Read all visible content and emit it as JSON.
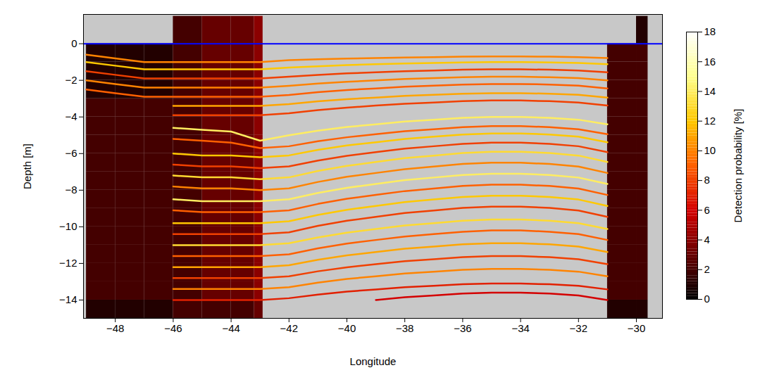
{
  "chart_data": {
    "type": "heatmap",
    "x_label": "Longitude",
    "y_label": "Depth [m]",
    "xlim": [
      -49.1,
      -29.1
    ],
    "ylim": [
      -15,
      1.6
    ],
    "xticks": [
      -48,
      -46,
      -44,
      -42,
      -40,
      -38,
      -36,
      -34,
      -32,
      -30
    ],
    "yticks": [
      -14,
      -12,
      -10,
      -8,
      -6,
      -4,
      -2,
      0
    ],
    "cells": {
      "x_edges": [
        -49,
        -48,
        -47,
        -46,
        -45,
        -44,
        -43.2,
        -42.9,
        -42,
        -41,
        -40,
        -39,
        -38,
        -37,
        -36,
        -35,
        -34,
        -33,
        -32,
        -31,
        -30,
        -29.6
      ],
      "y_edges": [
        -15,
        -14,
        -13,
        -12,
        -11,
        -10,
        -9,
        -8,
        -7,
        -6,
        -5,
        -4,
        -3,
        -2,
        -1,
        0,
        1.5
      ],
      "values": [
        [
          1,
          1,
          1,
          2,
          2,
          2,
          3,
          null,
          null,
          null,
          null,
          null,
          null,
          null,
          null,
          null,
          null,
          null,
          null,
          1,
          1
        ],
        [
          2,
          2,
          2,
          2,
          3,
          3,
          4,
          null,
          null,
          null,
          null,
          null,
          null,
          null,
          null,
          null,
          null,
          null,
          null,
          2,
          2
        ],
        [
          2,
          2,
          2,
          2,
          3,
          3,
          4,
          null,
          null,
          null,
          null,
          null,
          null,
          null,
          null,
          null,
          null,
          null,
          null,
          2,
          2
        ],
        [
          2,
          2,
          2,
          2,
          3,
          3,
          4,
          null,
          null,
          null,
          null,
          null,
          null,
          null,
          null,
          null,
          null,
          null,
          null,
          2,
          2
        ],
        [
          2,
          2,
          2,
          2,
          3,
          3,
          4,
          null,
          null,
          null,
          null,
          null,
          null,
          null,
          null,
          null,
          null,
          null,
          null,
          2,
          2
        ],
        [
          2,
          2,
          2,
          2,
          3,
          3,
          4,
          null,
          null,
          null,
          null,
          null,
          null,
          null,
          null,
          null,
          null,
          null,
          null,
          2,
          2
        ],
        [
          2,
          2,
          2,
          2,
          3,
          3,
          4,
          null,
          null,
          null,
          null,
          null,
          null,
          null,
          null,
          null,
          null,
          null,
          null,
          2,
          2
        ],
        [
          2,
          2,
          2,
          2,
          3,
          3,
          4,
          null,
          null,
          null,
          null,
          null,
          null,
          null,
          null,
          null,
          null,
          null,
          null,
          2,
          2
        ],
        [
          2,
          2,
          2,
          2,
          3,
          3,
          4,
          null,
          null,
          null,
          null,
          null,
          null,
          null,
          null,
          null,
          null,
          null,
          null,
          2,
          2
        ],
        [
          2,
          2,
          2,
          2,
          3,
          3,
          4,
          null,
          null,
          null,
          null,
          null,
          null,
          null,
          null,
          null,
          null,
          null,
          null,
          2,
          2
        ],
        [
          2,
          2,
          2,
          2,
          3,
          3,
          4,
          null,
          null,
          null,
          null,
          null,
          null,
          null,
          null,
          null,
          null,
          null,
          null,
          2,
          2
        ],
        [
          2,
          2,
          2,
          2,
          3,
          3,
          4,
          null,
          null,
          null,
          null,
          null,
          null,
          null,
          null,
          null,
          null,
          null,
          null,
          2,
          2
        ],
        [
          1,
          1,
          1,
          2,
          3,
          3,
          4,
          null,
          null,
          null,
          null,
          null,
          null,
          null,
          null,
          null,
          null,
          null,
          null,
          2,
          2
        ],
        [
          1,
          1,
          1,
          2,
          3,
          3,
          4,
          null,
          null,
          null,
          null,
          null,
          null,
          null,
          null,
          null,
          null,
          null,
          null,
          2,
          2
        ],
        [
          1,
          1,
          1,
          2,
          3,
          3,
          4,
          null,
          null,
          null,
          null,
          null,
          null,
          null,
          null,
          null,
          null,
          null,
          null,
          2,
          2
        ],
        [
          null,
          null,
          null,
          2,
          3,
          3,
          4,
          null,
          null,
          null,
          null,
          null,
          null,
          null,
          null,
          null,
          null,
          null,
          null,
          null,
          1
        ]
      ]
    },
    "layers": {
      "x": [
        -49,
        -48,
        -47,
        -46,
        -45,
        -44,
        -43,
        -42,
        -41,
        -40,
        -39,
        -38,
        -37,
        -36,
        -35,
        -34,
        -33,
        -32,
        -31
      ],
      "series": [
        {
          "probability": 10,
          "depth": [
            -0.6,
            -0.8,
            -1.0,
            -1.0,
            -1.0,
            -1.0,
            -1.0,
            -0.9,
            -0.85,
            -0.81,
            -0.78,
            -0.75,
            -0.73,
            -0.71,
            -0.7,
            -0.7,
            -0.71,
            -0.73,
            -0.78
          ]
        },
        {
          "probability": 12,
          "depth": [
            -1.0,
            -1.2,
            -1.4,
            -1.4,
            -1.4,
            -1.4,
            -1.4,
            -1.3,
            -1.23,
            -1.17,
            -1.12,
            -1.08,
            -1.05,
            -1.02,
            -1.0,
            -1.0,
            -1.02,
            -1.05,
            -1.12
          ]
        },
        {
          "probability": 8,
          "depth": [
            -1.5,
            -1.7,
            -1.9,
            -1.9,
            -1.9,
            -1.9,
            -1.9,
            -1.8,
            -1.7,
            -1.62,
            -1.56,
            -1.5,
            -1.46,
            -1.42,
            -1.4,
            -1.4,
            -1.42,
            -1.46,
            -1.56
          ]
        },
        {
          "probability": 10,
          "depth": [
            -2.0,
            -2.2,
            -2.4,
            -2.4,
            -2.4,
            -2.4,
            -2.4,
            -2.3,
            -2.18,
            -2.08,
            -2.0,
            -1.93,
            -1.88,
            -1.83,
            -1.8,
            -1.8,
            -1.83,
            -1.88,
            -2.0
          ]
        },
        {
          "probability": 9,
          "depth": [
            -2.5,
            -2.7,
            -2.9,
            -2.9,
            -2.9,
            -2.9,
            -2.9,
            -2.8,
            -2.65,
            -2.53,
            -2.44,
            -2.35,
            -2.29,
            -2.23,
            -2.2,
            -2.2,
            -2.23,
            -2.29,
            -2.44
          ]
        },
        {
          "probability": 11,
          "depth": [
            null,
            null,
            null,
            -3.4,
            -3.4,
            -3.4,
            -3.4,
            -3.3,
            -3.15,
            -3.03,
            -2.94,
            -2.85,
            -2.79,
            -2.73,
            -2.7,
            -2.7,
            -2.73,
            -2.79,
            -2.94
          ]
        },
        {
          "probability": 8,
          "depth": [
            null,
            null,
            null,
            -3.9,
            -3.9,
            -3.9,
            -3.9,
            -3.8,
            -3.63,
            -3.49,
            -3.38,
            -3.28,
            -3.21,
            -3.14,
            -3.1,
            -3.1,
            -3.14,
            -3.21,
            -3.38
          ]
        },
        {
          "probability": 14,
          "depth": [
            null,
            null,
            null,
            -4.6,
            -4.7,
            -4.8,
            -5.3,
            -5.0,
            -4.75,
            -4.55,
            -4.4,
            -4.25,
            -4.15,
            -4.05,
            -4.0,
            -4.0,
            -4.05,
            -4.15,
            -4.4
          ]
        },
        {
          "probability": 9,
          "depth": [
            null,
            null,
            null,
            -5.2,
            -5.3,
            -5.4,
            -5.7,
            -5.6,
            -5.33,
            -5.11,
            -4.94,
            -4.78,
            -4.67,
            -4.56,
            -4.5,
            -4.5,
            -4.56,
            -4.67,
            -4.94
          ]
        },
        {
          "probability": 12,
          "depth": [
            null,
            null,
            null,
            -6.0,
            -6.1,
            -6.1,
            -6.2,
            -6.1,
            -5.8,
            -5.56,
            -5.38,
            -5.2,
            -5.08,
            -4.96,
            -4.9,
            -4.9,
            -4.96,
            -5.08,
            -5.38
          ]
        },
        {
          "probability": 8,
          "depth": [
            null,
            null,
            null,
            -6.6,
            -6.7,
            -6.7,
            -6.8,
            -6.7,
            -6.38,
            -6.12,
            -5.92,
            -5.73,
            -5.6,
            -5.47,
            -5.4,
            -5.4,
            -5.47,
            -5.6,
            -5.92
          ]
        },
        {
          "probability": 13,
          "depth": [
            null,
            null,
            null,
            -7.2,
            -7.3,
            -7.3,
            -7.4,
            -7.3,
            -6.95,
            -6.67,
            -6.46,
            -6.25,
            -6.11,
            -5.97,
            -5.9,
            -5.9,
            -5.97,
            -6.11,
            -6.46
          ]
        },
        {
          "probability": 10,
          "depth": [
            null,
            null,
            null,
            -7.8,
            -7.9,
            -7.9,
            -8.0,
            -7.9,
            -7.55,
            -7.27,
            -7.06,
            -6.85,
            -6.71,
            -6.57,
            -6.5,
            -6.5,
            -6.57,
            -6.71,
            -7.06
          ]
        },
        {
          "probability": 14,
          "depth": [
            null,
            null,
            null,
            -8.5,
            -8.6,
            -8.6,
            -8.6,
            -8.5,
            -8.15,
            -7.87,
            -7.66,
            -7.45,
            -7.31,
            -7.17,
            -7.1,
            -7.1,
            -7.17,
            -7.31,
            -7.66
          ]
        },
        {
          "probability": 9,
          "depth": [
            null,
            null,
            null,
            -9.1,
            -9.2,
            -9.2,
            -9.2,
            -9.1,
            -8.75,
            -8.47,
            -8.26,
            -8.05,
            -7.91,
            -7.77,
            -7.7,
            -7.7,
            -7.77,
            -7.91,
            -8.26
          ]
        },
        {
          "probability": 12,
          "depth": [
            null,
            null,
            null,
            -9.8,
            -9.8,
            -9.8,
            -9.8,
            -9.7,
            -9.35,
            -9.07,
            -8.86,
            -8.65,
            -8.51,
            -8.37,
            -8.3,
            -8.3,
            -8.37,
            -8.51,
            -8.86
          ]
        },
        {
          "probability": 8,
          "depth": [
            null,
            null,
            null,
            -10.4,
            -10.4,
            -10.4,
            -10.4,
            -10.3,
            -9.95,
            -9.67,
            -9.46,
            -9.25,
            -9.11,
            -8.97,
            -8.9,
            -8.9,
            -8.97,
            -9.11,
            -9.46
          ]
        },
        {
          "probability": 13,
          "depth": [
            null,
            null,
            null,
            -11.0,
            -11.0,
            -11.0,
            -11.0,
            -10.9,
            -10.58,
            -10.32,
            -10.12,
            -9.93,
            -9.8,
            -9.67,
            -9.6,
            -9.6,
            -9.67,
            -9.8,
            -10.12
          ]
        },
        {
          "probability": 9,
          "depth": [
            null,
            null,
            null,
            -11.6,
            -11.6,
            -11.6,
            -11.6,
            -11.5,
            -11.18,
            -10.92,
            -10.72,
            -10.53,
            -10.4,
            -10.27,
            -10.2,
            -10.2,
            -10.27,
            -10.4,
            -10.72
          ]
        },
        {
          "probability": 11,
          "depth": [
            null,
            null,
            null,
            -12.2,
            -12.2,
            -12.2,
            -12.2,
            -12.1,
            -11.8,
            -11.56,
            -11.38,
            -11.2,
            -11.08,
            -10.96,
            -10.9,
            -10.9,
            -10.96,
            -11.08,
            -11.38
          ]
        },
        {
          "probability": 8,
          "depth": [
            null,
            null,
            null,
            -12.8,
            -12.8,
            -12.8,
            -12.8,
            -12.7,
            -12.43,
            -12.21,
            -12.04,
            -11.88,
            -11.77,
            -11.66,
            -11.6,
            -11.6,
            -11.66,
            -11.77,
            -12.04
          ]
        },
        {
          "probability": 10,
          "depth": [
            null,
            null,
            null,
            -13.4,
            -13.4,
            -13.4,
            -13.4,
            -13.3,
            -13.05,
            -12.85,
            -12.7,
            -12.55,
            -12.45,
            -12.35,
            -12.3,
            -12.3,
            -12.35,
            -12.45,
            -12.7
          ]
        },
        {
          "probability": 7,
          "depth": [
            null,
            null,
            null,
            -14.0,
            -14.0,
            -14.0,
            -14.0,
            -13.9,
            -13.7,
            -13.54,
            -13.42,
            -13.3,
            -13.22,
            -13.14,
            -13.1,
            -13.1,
            -13.14,
            -13.22,
            -13.42
          ]
        },
        {
          "probability": 6,
          "depth": [
            null,
            null,
            null,
            null,
            null,
            null,
            null,
            null,
            null,
            null,
            -14.0,
            -13.85,
            -13.75,
            -13.65,
            -13.6,
            -13.6,
            -13.65,
            -13.75,
            -14.0
          ]
        }
      ]
    },
    "reference_line": {
      "y": 0,
      "color": "#0000ff"
    },
    "colorbar": {
      "label": "Detection probability [%]",
      "range": [
        0,
        18
      ],
      "ticks": [
        0,
        2,
        4,
        6,
        8,
        10,
        12,
        14,
        16,
        18
      ]
    }
  }
}
